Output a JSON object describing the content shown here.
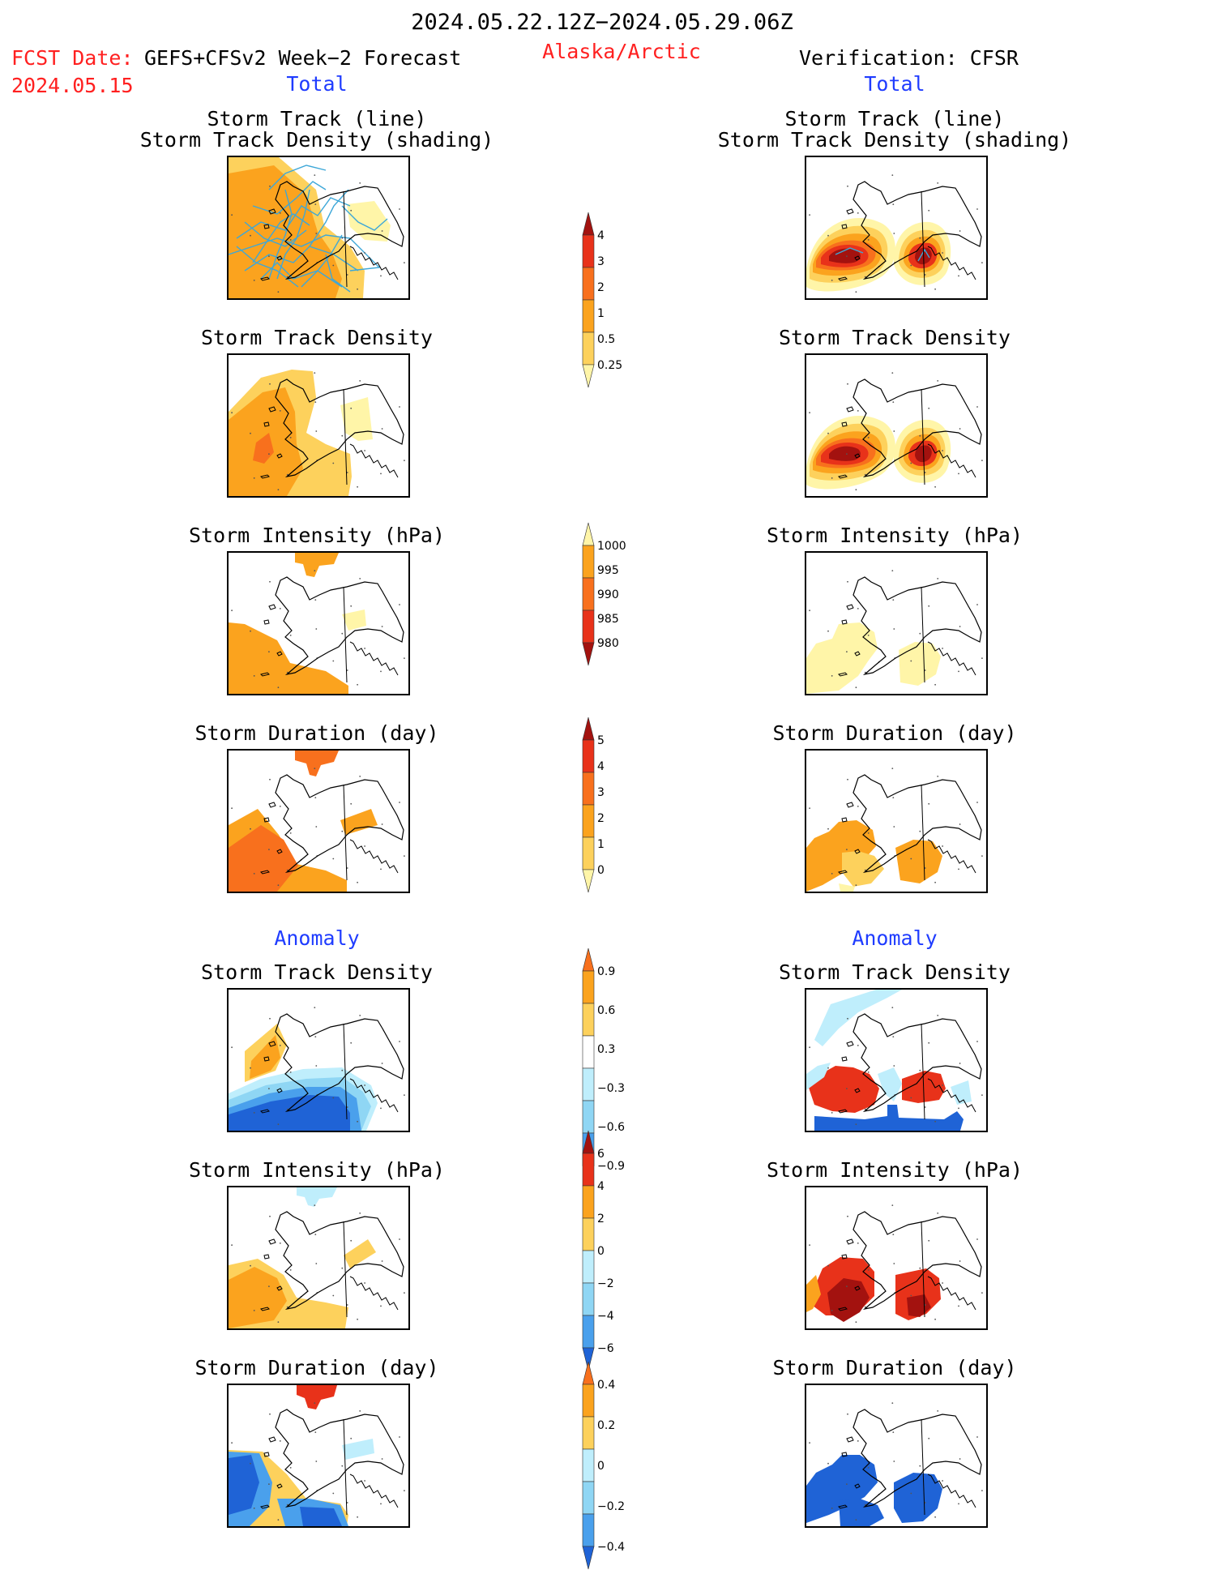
{
  "header": {
    "date_range": "2024.05.22.12Z−2024.05.29.06Z",
    "fcst_label": "FCST Date:",
    "fcst_model": "GEFS+CFSv2 Week−2 Forecast",
    "fcst_date": "2024.05.15",
    "region": "Alaska/Arctic",
    "verification": "Verification: CFSR",
    "total_left": "Total",
    "total_right": "Total",
    "anomaly_left": "Anomaly",
    "anomaly_right": "Anomaly"
  },
  "panel_titles": {
    "track_line": "Storm Track (line)",
    "track_shading": "Storm Track Density (shading)",
    "density": "Storm Track Density",
    "intensity": "Storm Intensity (hPa)",
    "duration": "Storm Duration (day)"
  },
  "colors": {
    "c_pale": "#fff5a8",
    "c_light": "#fdd15c",
    "c_orange": "#fba31e",
    "c_dkorange": "#f8701d",
    "c_red": "#e8321a",
    "c_dkred": "#a3120f",
    "c_lblue": "#bfeefc",
    "c_sky": "#8fd6f4",
    "c_mblue": "#4aa0ec",
    "c_blue": "#1f63d6",
    "track_line": "#3da7d8"
  },
  "chart_data": [
    {
      "type": "heatmap",
      "panel": "forecast-total-track-density-with-tracks",
      "title": "Storm Track (line) / Storm Track Density (shading)",
      "colorbar": "density"
    },
    {
      "type": "heatmap",
      "panel": "cfsr-total-track-density-with-tracks",
      "title": "Storm Track (line) / Storm Track Density (shading)",
      "colorbar": "density"
    },
    {
      "type": "heatmap",
      "panel": "forecast-total-track-density",
      "title": "Storm Track Density",
      "colorbar": "density"
    },
    {
      "type": "heatmap",
      "panel": "cfsr-total-track-density",
      "title": "Storm Track Density",
      "colorbar": "density"
    },
    {
      "type": "heatmap",
      "panel": "forecast-total-intensity",
      "title": "Storm Intensity (hPa)",
      "colorbar": "intensity"
    },
    {
      "type": "heatmap",
      "panel": "cfsr-total-intensity",
      "title": "Storm Intensity (hPa)",
      "colorbar": "intensity"
    },
    {
      "type": "heatmap",
      "panel": "forecast-total-duration",
      "title": "Storm Duration (day)",
      "colorbar": "duration"
    },
    {
      "type": "heatmap",
      "panel": "cfsr-total-duration",
      "title": "Storm Duration (day)",
      "colorbar": "duration"
    },
    {
      "type": "heatmap",
      "panel": "forecast-anomaly-track-density",
      "title": "Storm Track Density",
      "colorbar": "density_anom"
    },
    {
      "type": "heatmap",
      "panel": "cfsr-anomaly-track-density",
      "title": "Storm Track Density",
      "colorbar": "density_anom"
    },
    {
      "type": "heatmap",
      "panel": "forecast-anomaly-intensity",
      "title": "Storm Intensity (hPa)",
      "colorbar": "intensity_anom"
    },
    {
      "type": "heatmap",
      "panel": "cfsr-anomaly-intensity",
      "title": "Storm Intensity (hPa)",
      "colorbar": "intensity_anom"
    },
    {
      "type": "heatmap",
      "panel": "forecast-anomaly-duration",
      "title": "Storm Duration (day)",
      "colorbar": "duration_anom"
    },
    {
      "type": "heatmap",
      "panel": "cfsr-anomaly-duration",
      "title": "Storm Duration (day)",
      "colorbar": "duration_anom"
    }
  ],
  "colorbars": {
    "density": {
      "labels": [
        "4",
        "3",
        "2",
        "1",
        "0.5",
        "0.25"
      ],
      "colors": [
        "#a3120f",
        "#e8321a",
        "#f8701d",
        "#fba31e",
        "#fdd15c",
        "#fff5a8"
      ]
    },
    "intensity": {
      "labels": [
        "1000",
        "995",
        "990",
        "985",
        "980"
      ],
      "colors": [
        "#fff5a8",
        "#fba31e",
        "#f8701d",
        "#e8321a",
        "#a3120f"
      ]
    },
    "duration": {
      "labels": [
        "5",
        "4",
        "3",
        "2",
        "1",
        "0"
      ],
      "colors": [
        "#a3120f",
        "#e8321a",
        "#f8701d",
        "#fba31e",
        "#fdd15c",
        "#fff5a8"
      ]
    },
    "density_anom": {
      "labels": [
        "0.9",
        "0.6",
        "0.3",
        "−0.3",
        "−0.6",
        "−0.9"
      ],
      "colors": [
        "#f8701d",
        "#fba31e",
        "#fdd15c",
        "#ffffff",
        "#bfeefc",
        "#8fd6f4",
        "#4aa0ec",
        "#1f63d6"
      ]
    },
    "intensity_anom": {
      "labels": [
        "6",
        "4",
        "2",
        "0",
        "−2",
        "−4",
        "−6"
      ],
      "colors": [
        "#a3120f",
        "#e8321a",
        "#fba31e",
        "#fdd15c",
        "#bfeefc",
        "#8fd6f4",
        "#4aa0ec",
        "#1f63d6"
      ]
    },
    "duration_anom": {
      "labels": [
        "0.4",
        "0.2",
        "0",
        "−0.2",
        "−0.4"
      ],
      "colors": [
        "#f8701d",
        "#fba31e",
        "#fdd15c",
        "#bfeefc",
        "#8fd6f4",
        "#4aa0ec",
        "#1f63d6"
      ]
    }
  }
}
